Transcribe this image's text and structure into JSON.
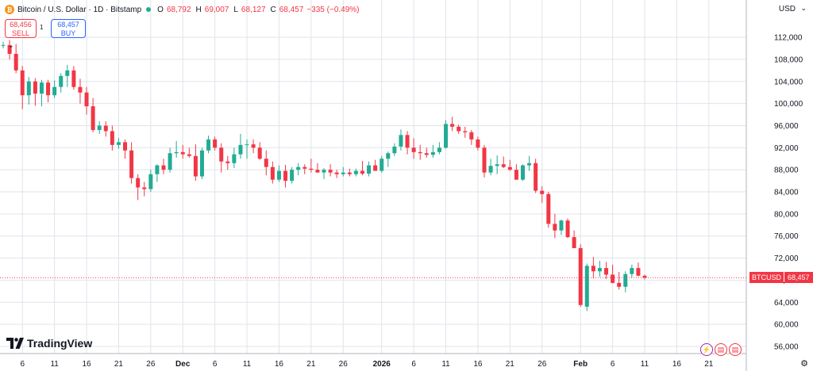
{
  "legend": {
    "title": "Bitcoin / U.S. Dollar · 1D · Bitstamp",
    "o_label": "O",
    "o": "68,792",
    "h_label": "H",
    "h": "69,007",
    "l_label": "L",
    "l": "68,127",
    "c_label": "C",
    "c": "68,457",
    "change": "−335 (−0.49%)",
    "icon": "bitcoin-icon"
  },
  "trade": {
    "sell_price": "68,456",
    "sell_label": "SELL",
    "spread": "1",
    "buy_price": "68,457",
    "buy_label": "BUY"
  },
  "currency": "USD",
  "price_tag": {
    "symbol": "BTCUSD",
    "value": "68,457"
  },
  "brand": "TradingView",
  "colors": {
    "up": "#22ab94",
    "down": "#f23645",
    "grid": "#e0e3eb"
  },
  "chart_data": {
    "type": "candlestick",
    "y_ticks": [
      56000,
      60000,
      64000,
      68000,
      72000,
      76000,
      80000,
      84000,
      88000,
      92000,
      96000,
      100000,
      104000,
      108000,
      112000
    ],
    "y_tick_labels": [
      "56,000",
      "60,000",
      "64,000",
      "68,000",
      "72,000",
      "76,000",
      "80,000",
      "84,000",
      "88,000",
      "92,000",
      "96,000",
      "100,000",
      "104,000",
      "108,000",
      "112,000"
    ],
    "ylim": [
      54700,
      115600
    ],
    "x_tick_labels": [
      {
        "label": "6",
        "i": 3
      },
      {
        "label": "11",
        "i": 8
      },
      {
        "label": "16",
        "i": 13
      },
      {
        "label": "21",
        "i": 18
      },
      {
        "label": "26",
        "i": 23
      },
      {
        "label": "Dec",
        "i": 28
      },
      {
        "label": "6",
        "i": 33
      },
      {
        "label": "11",
        "i": 38
      },
      {
        "label": "16",
        "i": 43
      },
      {
        "label": "21",
        "i": 48
      },
      {
        "label": "26",
        "i": 53
      },
      {
        "label": "2026",
        "i": 59
      },
      {
        "label": "6",
        "i": 64
      },
      {
        "label": "11",
        "i": 69
      },
      {
        "label": "16",
        "i": 74
      },
      {
        "label": "21",
        "i": 79
      },
      {
        "label": "26",
        "i": 84
      },
      {
        "label": "Feb",
        "i": 90
      },
      {
        "label": "6",
        "i": 95
      },
      {
        "label": "11",
        "i": 100
      },
      {
        "label": "16",
        "i": 105
      },
      {
        "label": "21",
        "i": 110
      }
    ],
    "bold_x_ticks": [
      "Dec",
      "2026",
      "Feb"
    ],
    "candles": [
      [
        110500,
        111200,
        110000,
        110600
      ],
      [
        110600,
        111500,
        108000,
        109000
      ],
      [
        109000,
        110800,
        105500,
        106000
      ],
      [
        106000,
        106800,
        99000,
        101500
      ],
      [
        101500,
        104800,
        99800,
        104000
      ],
      [
        104000,
        104600,
        99600,
        101800
      ],
      [
        101800,
        104300,
        99500,
        103800
      ],
      [
        103800,
        104300,
        100200,
        101500
      ],
      [
        101500,
        104200,
        101000,
        103000
      ],
      [
        103000,
        105500,
        102000,
        105000
      ],
      [
        105000,
        107000,
        103000,
        106000
      ],
      [
        106000,
        106800,
        102500,
        103000
      ],
      [
        103000,
        104500,
        100000,
        102000
      ],
      [
        102000,
        103000,
        98000,
        99500
      ],
      [
        99500,
        101000,
        94800,
        95200
      ],
      [
        95200,
        96800,
        94500,
        96000
      ],
      [
        96000,
        96800,
        94000,
        95000
      ],
      [
        95000,
        96000,
        91500,
        92500
      ],
      [
        92500,
        93800,
        91800,
        93000
      ],
      [
        93000,
        93500,
        90000,
        91500
      ],
      [
        91500,
        93000,
        85500,
        86500
      ],
      [
        86500,
        87200,
        82500,
        84800
      ],
      [
        84800,
        85800,
        83200,
        84500
      ],
      [
        84500,
        88000,
        84000,
        87200
      ],
      [
        87200,
        89000,
        85800,
        88800
      ],
      [
        88800,
        90000,
        87200,
        88000
      ],
      [
        88000,
        92000,
        87500,
        91000
      ],
      [
        91000,
        93200,
        90200,
        91200
      ],
      [
        91200,
        92500,
        90000,
        90800
      ],
      [
        90800,
        92000,
        90200,
        90500
      ],
      [
        90500,
        92600,
        86000,
        86800
      ],
      [
        86800,
        92000,
        86300,
        91500
      ],
      [
        91500,
        94200,
        91000,
        93500
      ],
      [
        93500,
        94000,
        91500,
        92000
      ],
      [
        92000,
        92800,
        87500,
        89500
      ],
      [
        89500,
        90500,
        88000,
        89200
      ],
      [
        89200,
        92000,
        88300,
        90800
      ],
      [
        90800,
        94500,
        90000,
        92500
      ],
      [
        92500,
        93500,
        90000,
        92600
      ],
      [
        92600,
        93500,
        91000,
        92000
      ],
      [
        92000,
        93000,
        89800,
        90000
      ],
      [
        90000,
        91500,
        87000,
        88500
      ],
      [
        88500,
        89500,
        85500,
        86200
      ],
      [
        86200,
        88800,
        85800,
        87800
      ],
      [
        87800,
        88900,
        84800,
        86000
      ],
      [
        86000,
        88500,
        85500,
        88000
      ],
      [
        88000,
        89200,
        87000,
        88500
      ],
      [
        88500,
        89000,
        87200,
        88200
      ],
      [
        88200,
        90000,
        87500,
        88000
      ],
      [
        88000,
        89200,
        87500,
        87500
      ],
      [
        87500,
        88300,
        86300,
        88000
      ],
      [
        88000,
        89000,
        86800,
        87500
      ],
      [
        87500,
        88000,
        86500,
        87200
      ],
      [
        87200,
        88500,
        86800,
        87500
      ],
      [
        87500,
        88200,
        86800,
        87200
      ],
      [
        87200,
        88200,
        86800,
        87800
      ],
      [
        87800,
        89600,
        87000,
        87300
      ],
      [
        87300,
        89500,
        86800,
        88800
      ],
      [
        88800,
        89800,
        87800,
        87800
      ],
      [
        87800,
        90500,
        87500,
        90000
      ],
      [
        90000,
        91300,
        88500,
        91000
      ],
      [
        91000,
        92800,
        90500,
        92200
      ],
      [
        92200,
        95300,
        91500,
        94300
      ],
      [
        94300,
        95000,
        90800,
        92000
      ],
      [
        92000,
        93700,
        90000,
        91200
      ],
      [
        91200,
        92500,
        89800,
        91000
      ],
      [
        91000,
        92000,
        90200,
        90700
      ],
      [
        90700,
        92500,
        90200,
        91200
      ],
      [
        91200,
        93000,
        90800,
        92000
      ],
      [
        92000,
        97000,
        91800,
        96300
      ],
      [
        96300,
        97600,
        95000,
        95800
      ],
      [
        95800,
        96200,
        94500,
        95000
      ],
      [
        95000,
        95800,
        93800,
        94800
      ],
      [
        94800,
        95200,
        92500,
        93500
      ],
      [
        93500,
        94000,
        91500,
        92000
      ],
      [
        92000,
        92500,
        86600,
        87500
      ],
      [
        87500,
        90000,
        87000,
        88700
      ],
      [
        88700,
        90600,
        87200,
        89000
      ],
      [
        89000,
        90400,
        88300,
        88500
      ],
      [
        88500,
        89800,
        87800,
        88000
      ],
      [
        88000,
        89000,
        86200,
        86200
      ],
      [
        86200,
        89000,
        86000,
        88800
      ],
      [
        88800,
        90500,
        87800,
        89200
      ],
      [
        89200,
        90000,
        83800,
        84200
      ],
      [
        84200,
        85000,
        82000,
        83600
      ],
      [
        83600,
        84000,
        77500,
        78200
      ],
      [
        78200,
        80000,
        75600,
        77000
      ],
      [
        77000,
        79000,
        76200,
        78800
      ],
      [
        78800,
        79200,
        75600,
        75800
      ],
      [
        75800,
        77000,
        73800,
        73800
      ],
      [
        73800,
        74500,
        63200,
        63500
      ],
      [
        63200,
        71000,
        62400,
        70600
      ],
      [
        70600,
        72200,
        68300,
        69600
      ],
      [
        69600,
        71500,
        68600,
        70200
      ],
      [
        70200,
        71300,
        68200,
        69000
      ],
      [
        69000,
        70800,
        67400,
        67500
      ],
      [
        67500,
        69500,
        66300,
        66800
      ],
      [
        66800,
        69600,
        65800,
        69100
      ],
      [
        69100,
        70800,
        68500,
        70200
      ],
      [
        70200,
        71200,
        68700,
        68800
      ],
      [
        68792,
        69007,
        68127,
        68457
      ]
    ]
  }
}
